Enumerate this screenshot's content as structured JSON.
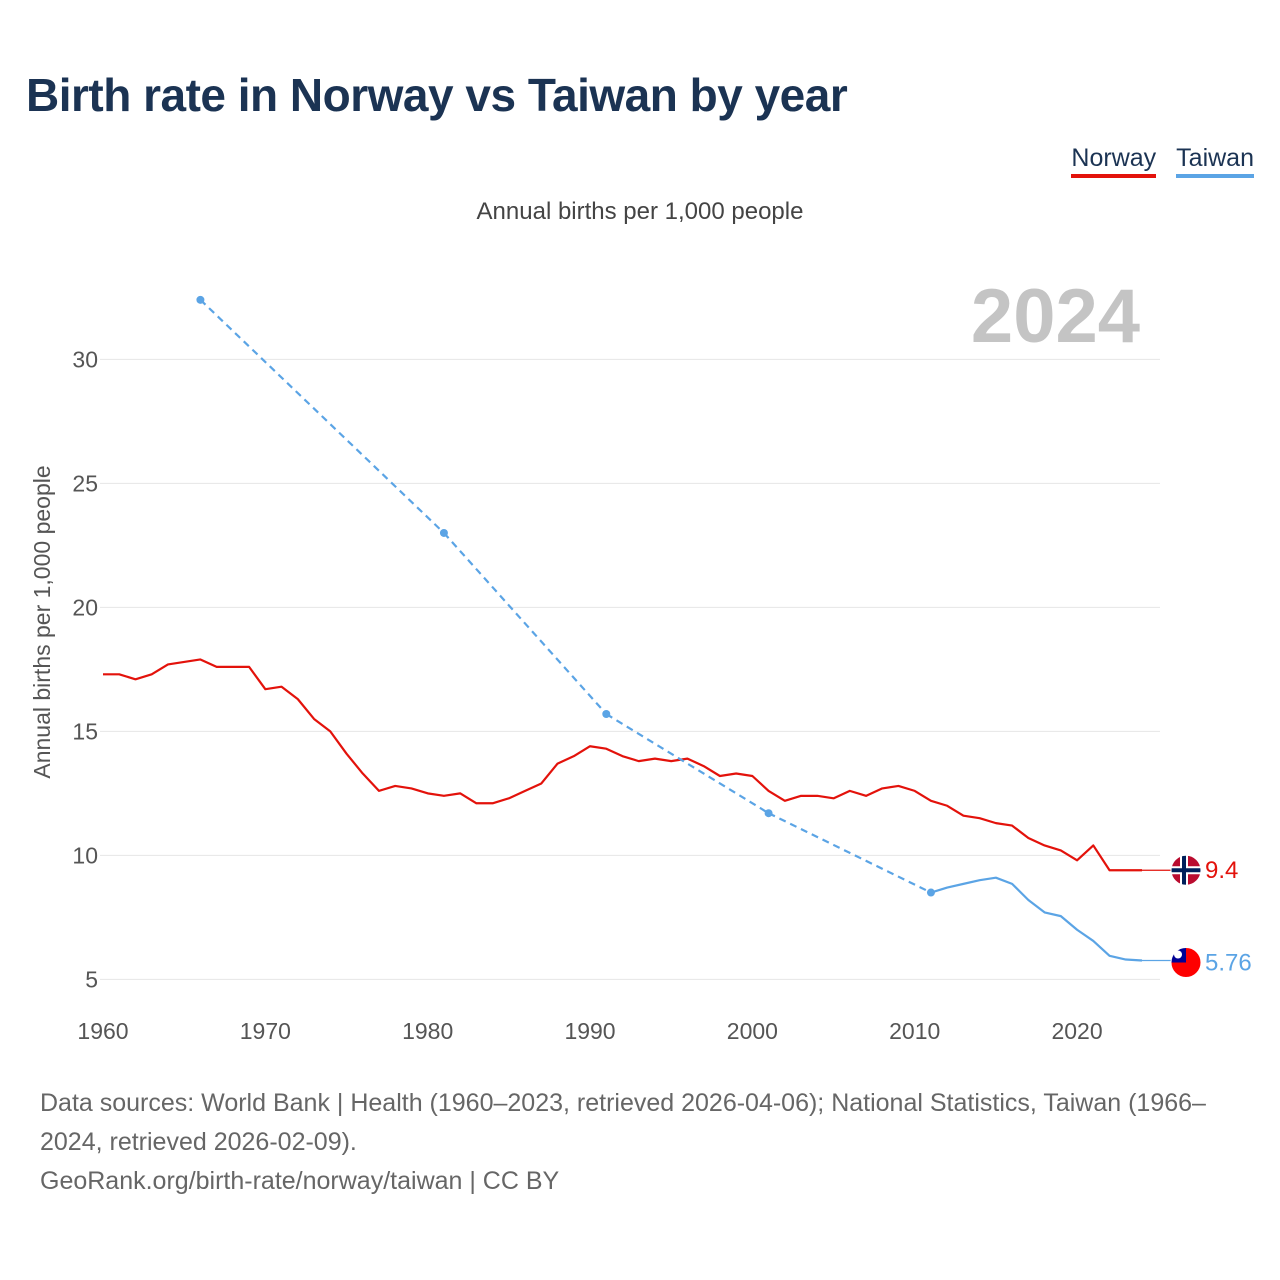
{
  "header": {
    "title": "Birth rate in Norway vs Taiwan by year",
    "subtitle": "Annual births per 1,000 people"
  },
  "legend": [
    {
      "name": "Norway",
      "color": "#e3120b"
    },
    {
      "name": "Taiwan",
      "color": "#5ba4e5"
    }
  ],
  "footer": {
    "sources": "Data sources: World Bank | Health (1960–2023, retrieved 2026-04-06); National Statistics, Taiwan (1966–2024, retrieved 2026-02-09).",
    "attribution": "GeoRank.org/birth-rate/norway/taiwan | CC BY"
  },
  "chart_data": {
    "type": "line",
    "title": "Birth rate in Norway vs Taiwan by year",
    "ylabel": "Annual births per 1,000 people",
    "xlabel": "",
    "year_label": "2024",
    "xlim": [
      1960,
      2024
    ],
    "ylim": [
      3.2,
      33.2
    ],
    "x_ticks": [
      1960,
      1970,
      1980,
      1990,
      2000,
      2010,
      2020
    ],
    "y_ticks": [
      5,
      10,
      15,
      20,
      25,
      30
    ],
    "grid": true,
    "series": [
      {
        "name": "Norway",
        "color": "#e3120b",
        "end_label": "9.4",
        "flag": "norway-flag",
        "points": [
          [
            1960,
            17.3
          ],
          [
            1961,
            17.3
          ],
          [
            1962,
            17.1
          ],
          [
            1963,
            17.3
          ],
          [
            1964,
            17.7
          ],
          [
            1965,
            17.8
          ],
          [
            1966,
            17.9
          ],
          [
            1967,
            17.6
          ],
          [
            1968,
            17.6
          ],
          [
            1969,
            17.6
          ],
          [
            1970,
            16.7
          ],
          [
            1971,
            16.8
          ],
          [
            1972,
            16.3
          ],
          [
            1973,
            15.5
          ],
          [
            1974,
            15.0
          ],
          [
            1975,
            14.1
          ],
          [
            1976,
            13.3
          ],
          [
            1977,
            12.6
          ],
          [
            1978,
            12.8
          ],
          [
            1979,
            12.7
          ],
          [
            1980,
            12.5
          ],
          [
            1981,
            12.4
          ],
          [
            1982,
            12.5
          ],
          [
            1983,
            12.1
          ],
          [
            1984,
            12.1
          ],
          [
            1985,
            12.3
          ],
          [
            1986,
            12.6
          ],
          [
            1987,
            12.9
          ],
          [
            1988,
            13.7
          ],
          [
            1989,
            14.0
          ],
          [
            1990,
            14.4
          ],
          [
            1991,
            14.3
          ],
          [
            1992,
            14.0
          ],
          [
            1993,
            13.8
          ],
          [
            1994,
            13.9
          ],
          [
            1995,
            13.8
          ],
          [
            1996,
            13.9
          ],
          [
            1997,
            13.6
          ],
          [
            1998,
            13.2
          ],
          [
            1999,
            13.3
          ],
          [
            2000,
            13.2
          ],
          [
            2001,
            12.6
          ],
          [
            2002,
            12.2
          ],
          [
            2003,
            12.4
          ],
          [
            2004,
            12.4
          ],
          [
            2005,
            12.3
          ],
          [
            2006,
            12.6
          ],
          [
            2007,
            12.4
          ],
          [
            2008,
            12.7
          ],
          [
            2009,
            12.8
          ],
          [
            2010,
            12.6
          ],
          [
            2011,
            12.2
          ],
          [
            2012,
            12.0
          ],
          [
            2013,
            11.6
          ],
          [
            2014,
            11.5
          ],
          [
            2015,
            11.3
          ],
          [
            2016,
            11.2
          ],
          [
            2017,
            10.7
          ],
          [
            2018,
            10.4
          ],
          [
            2019,
            10.2
          ],
          [
            2020,
            9.8
          ],
          [
            2021,
            10.4
          ],
          [
            2022,
            9.4
          ],
          [
            2023,
            9.4
          ],
          [
            2024,
            9.4
          ]
        ]
      },
      {
        "name": "Taiwan",
        "color": "#5ba4e5",
        "end_label": "5.76",
        "flag": "taiwan-flag",
        "points": [
          [
            1966,
            32.4
          ],
          [
            1981,
            23.0
          ],
          [
            1991,
            15.7
          ],
          [
            2001,
            11.7
          ],
          [
            2011,
            8.5
          ],
          [
            2012,
            8.7
          ],
          [
            2013,
            8.85
          ],
          [
            2014,
            9.0
          ],
          [
            2015,
            9.1
          ],
          [
            2016,
            8.85
          ],
          [
            2017,
            8.2
          ],
          [
            2018,
            7.7
          ],
          [
            2019,
            7.55
          ],
          [
            2020,
            7.0
          ],
          [
            2021,
            6.55
          ],
          [
            2022,
            5.95
          ],
          [
            2023,
            5.8
          ],
          [
            2024,
            5.76
          ]
        ],
        "gap_years": [
          1966,
          1981,
          1991,
          2001,
          2011
        ]
      }
    ]
  }
}
